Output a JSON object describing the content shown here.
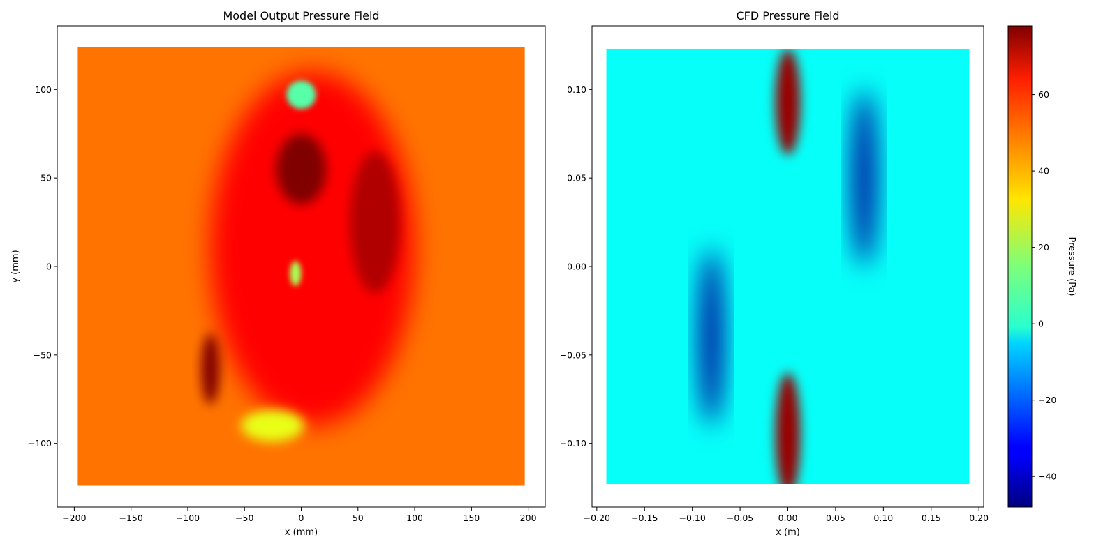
{
  "chart_data": [
    {
      "type": "heatmap",
      "title": "Model Output Pressure Field",
      "xlabel": "x (mm)",
      "ylabel": "y (mm)",
      "xlim": [
        -215,
        215
      ],
      "ylim": [
        -136,
        136
      ],
      "xticks": [
        -200,
        -150,
        -100,
        -50,
        0,
        50,
        100,
        150,
        200
      ],
      "yticks": [
        -100,
        -50,
        0,
        50,
        100
      ],
      "xtick_labels": [
        "−200",
        "−150",
        "−100",
        "−50",
        "0",
        "50",
        "100",
        "150",
        "200"
      ],
      "ytick_labels": [
        "−100",
        "−50",
        "0",
        "50",
        "100"
      ],
      "data_extent": {
        "x": [
          -197,
          197
        ],
        "y": [
          -124,
          124
        ]
      },
      "background_value": 48,
      "features": [
        {
          "kind": "high",
          "x": 0,
          "y": 55,
          "rx": 22,
          "ry": 20,
          "value": 78
        },
        {
          "kind": "high",
          "x": 65,
          "y": 25,
          "rx": 22,
          "ry": 40,
          "value": 72
        },
        {
          "kind": "high",
          "x": 10,
          "y": 10,
          "rx": 90,
          "ry": 100,
          "value": 62
        },
        {
          "kind": "high",
          "x": -80,
          "y": -58,
          "rx": 8,
          "ry": 20,
          "value": 82
        },
        {
          "kind": "low",
          "x": 0,
          "y": 97,
          "rx": 13,
          "ry": 8,
          "value": 10
        },
        {
          "kind": "low",
          "x": -5,
          "y": -4,
          "rx": 5,
          "ry": 7,
          "value": 20
        },
        {
          "kind": "low",
          "x": -25,
          "y": -90,
          "rx": 28,
          "ry": 9,
          "value": 28
        }
      ],
      "grid": false
    },
    {
      "type": "heatmap",
      "title": "CFD Pressure Field",
      "xlabel": "x (m)",
      "ylabel": "",
      "xlim": [
        -0.205,
        0.205
      ],
      "ylim": [
        -0.136,
        0.136
      ],
      "xticks": [
        -0.2,
        -0.15,
        -0.1,
        -0.05,
        0,
        0.05,
        0.1,
        0.15,
        0.2
      ],
      "yticks": [
        -0.1,
        -0.05,
        0,
        0.05,
        0.1
      ],
      "xtick_labels": [
        "−0.20",
        "−0.15",
        "−0.10",
        "−0.05",
        "0.00",
        "0.05",
        "0.10",
        "0.15",
        "0.20"
      ],
      "ytick_labels": [
        "−0.10",
        "−0.05",
        "0.00",
        "0.05",
        "0.10"
      ],
      "data_extent": {
        "x": [
          -0.19,
          0.19
        ],
        "y": [
          -0.123,
          0.123
        ]
      },
      "background_value": 0,
      "features": [
        {
          "kind": "high",
          "x": 0,
          "y": 0.093,
          "rx": 0.013,
          "ry": 0.03,
          "value": 75
        },
        {
          "kind": "high",
          "x": 0,
          "y": -0.095,
          "rx": 0.013,
          "ry": 0.035,
          "value": 75
        },
        {
          "kind": "low",
          "x": 0.08,
          "y": 0.05,
          "rx": 0.012,
          "ry": 0.05,
          "value": -45
        },
        {
          "kind": "low",
          "x": -0.08,
          "y": -0.04,
          "rx": 0.012,
          "ry": 0.05,
          "value": -45
        }
      ],
      "grid": false
    }
  ],
  "colorbar": {
    "label": "Pressure (Pa)",
    "range": [
      -48,
      78
    ],
    "ticks": [
      -40,
      -20,
      0,
      20,
      40,
      60
    ],
    "tick_labels": [
      "−40",
      "−20",
      "0",
      "20",
      "40",
      "60"
    ],
    "colormap": "jet"
  }
}
